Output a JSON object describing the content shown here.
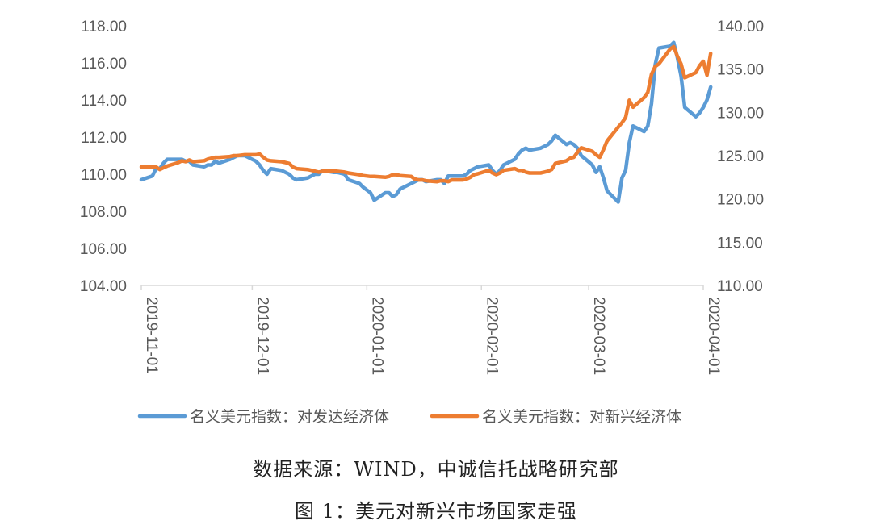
{
  "colors": {
    "developed": "#5B9BD5",
    "emerging": "#ED7D31",
    "axis": "#D9D9D9",
    "text": "#595959"
  },
  "captions": {
    "source": "数据来源：WIND，中诚信托战略研究部",
    "figure": "图 1：美元对新兴市场国家走强"
  },
  "chart_data": {
    "type": "line",
    "title": "",
    "grid": false,
    "legend_position": "bottom",
    "x_type": "date",
    "x_ticks": [
      "2019-11-01",
      "2019-12-01",
      "2020-01-01",
      "2020-02-01",
      "2020-03-01",
      "2020-04-01"
    ],
    "y_left": {
      "range": [
        104,
        118
      ],
      "ticks": [
        "104.00",
        "106.00",
        "108.00",
        "110.00",
        "112.00",
        "114.00",
        "116.00",
        "118.00"
      ]
    },
    "y_right": {
      "range": [
        110,
        140
      ],
      "ticks": [
        "110.00",
        "115.00",
        "120.00",
        "125.00",
        "130.00",
        "135.00",
        "140.00"
      ]
    },
    "series": [
      {
        "name": "名义美元指数：对发达经济体",
        "axis": "left",
        "color": "#5B9BD5",
        "points": [
          [
            "2019-11-01",
            109.7
          ],
          [
            "2019-11-04",
            109.9
          ],
          [
            "2019-11-05",
            110.3
          ],
          [
            "2019-11-06",
            110.3
          ],
          [
            "2019-11-07",
            110.6
          ],
          [
            "2019-11-08",
            110.8
          ],
          [
            "2019-11-11",
            110.8
          ],
          [
            "2019-11-12",
            110.8
          ],
          [
            "2019-11-13",
            110.7
          ],
          [
            "2019-11-14",
            110.7
          ],
          [
            "2019-11-15",
            110.5
          ],
          [
            "2019-11-18",
            110.4
          ],
          [
            "2019-11-19",
            110.5
          ],
          [
            "2019-11-20",
            110.5
          ],
          [
            "2019-11-21",
            110.7
          ],
          [
            "2019-11-22",
            110.6
          ],
          [
            "2019-11-25",
            110.8
          ],
          [
            "2019-11-26",
            110.9
          ],
          [
            "2019-11-27",
            111.0
          ],
          [
            "2019-11-29",
            111.0
          ],
          [
            "2019-12-02",
            110.7
          ],
          [
            "2019-12-03",
            110.5
          ],
          [
            "2019-12-04",
            110.2
          ],
          [
            "2019-12-05",
            110.0
          ],
          [
            "2019-12-06",
            110.3
          ],
          [
            "2019-12-09",
            110.2
          ],
          [
            "2019-12-10",
            110.1
          ],
          [
            "2019-12-11",
            110.0
          ],
          [
            "2019-12-12",
            109.8
          ],
          [
            "2019-12-13",
            109.7
          ],
          [
            "2019-12-16",
            109.8
          ],
          [
            "2019-12-17",
            109.9
          ],
          [
            "2019-12-18",
            110.0
          ],
          [
            "2019-12-19",
            110.0
          ],
          [
            "2019-12-20",
            110.2
          ],
          [
            "2019-12-23",
            110.1
          ],
          [
            "2019-12-24",
            110.1
          ],
          [
            "2019-12-26",
            110.0
          ],
          [
            "2019-12-27",
            109.7
          ],
          [
            "2019-12-30",
            109.5
          ],
          [
            "2019-12-31",
            109.3
          ],
          [
            "2020-01-02",
            109.0
          ],
          [
            "2020-01-03",
            108.6
          ],
          [
            "2020-01-06",
            109.0
          ],
          [
            "2020-01-07",
            109.0
          ],
          [
            "2020-01-08",
            108.8
          ],
          [
            "2020-01-09",
            108.9
          ],
          [
            "2020-01-10",
            109.2
          ],
          [
            "2020-01-13",
            109.5
          ],
          [
            "2020-01-14",
            109.6
          ],
          [
            "2020-01-15",
            109.7
          ],
          [
            "2020-01-16",
            109.7
          ],
          [
            "2020-01-17",
            109.6
          ],
          [
            "2020-01-20",
            109.7
          ],
          [
            "2020-01-21",
            109.7
          ],
          [
            "2020-01-22",
            109.5
          ],
          [
            "2020-01-23",
            109.9
          ],
          [
            "2020-01-24",
            109.9
          ],
          [
            "2020-01-27",
            109.9
          ],
          [
            "2020-01-28",
            110.0
          ],
          [
            "2020-01-29",
            110.2
          ],
          [
            "2020-01-30",
            110.3
          ],
          [
            "2020-01-31",
            110.4
          ],
          [
            "2020-02-03",
            110.5
          ],
          [
            "2020-02-04",
            110.2
          ],
          [
            "2020-02-05",
            110.0
          ],
          [
            "2020-02-06",
            110.2
          ],
          [
            "2020-02-07",
            110.5
          ],
          [
            "2020-02-10",
            110.8
          ],
          [
            "2020-02-11",
            111.1
          ],
          [
            "2020-02-12",
            111.3
          ],
          [
            "2020-02-13",
            111.4
          ],
          [
            "2020-02-14",
            111.3
          ],
          [
            "2020-02-17",
            111.4
          ],
          [
            "2020-02-18",
            111.5
          ],
          [
            "2020-02-19",
            111.6
          ],
          [
            "2020-02-20",
            111.8
          ],
          [
            "2020-02-21",
            112.1
          ],
          [
            "2020-02-24",
            111.6
          ],
          [
            "2020-02-25",
            111.7
          ],
          [
            "2020-02-26",
            111.6
          ],
          [
            "2020-02-27",
            111.4
          ],
          [
            "2020-02-28",
            111.0
          ],
          [
            "2020-03-02",
            110.5
          ],
          [
            "2020-03-03",
            110.1
          ],
          [
            "2020-03-04",
            110.4
          ],
          [
            "2020-03-05",
            109.8
          ],
          [
            "2020-03-06",
            109.1
          ],
          [
            "2020-03-09",
            108.5
          ],
          [
            "2020-03-10",
            109.8
          ],
          [
            "2020-03-11",
            110.2
          ],
          [
            "2020-03-12",
            111.7
          ],
          [
            "2020-03-13",
            112.6
          ],
          [
            "2020-03-16",
            112.3
          ],
          [
            "2020-03-17",
            112.6
          ],
          [
            "2020-03-18",
            113.8
          ],
          [
            "2020-03-19",
            115.9
          ],
          [
            "2020-03-20",
            116.8
          ],
          [
            "2020-03-23",
            116.9
          ],
          [
            "2020-03-24",
            117.1
          ],
          [
            "2020-03-25",
            116.3
          ],
          [
            "2020-03-26",
            115.3
          ],
          [
            "2020-03-27",
            113.6
          ],
          [
            "2020-03-30",
            113.1
          ],
          [
            "2020-03-31",
            113.3
          ],
          [
            "2020-04-01",
            113.6
          ],
          [
            "2020-04-02",
            114.0
          ],
          [
            "2020-04-03",
            114.7
          ]
        ]
      },
      {
        "name": "名义美元指数：对新兴经济体",
        "axis": "right",
        "color": "#ED7D31",
        "points": [
          [
            "2019-11-01",
            123.7
          ],
          [
            "2019-11-04",
            123.7
          ],
          [
            "2019-11-05",
            123.7
          ],
          [
            "2019-11-06",
            123.4
          ],
          [
            "2019-11-07",
            123.6
          ],
          [
            "2019-11-08",
            123.8
          ],
          [
            "2019-11-11",
            124.2
          ],
          [
            "2019-11-12",
            124.4
          ],
          [
            "2019-11-13",
            124.3
          ],
          [
            "2019-11-14",
            124.5
          ],
          [
            "2019-11-15",
            124.3
          ],
          [
            "2019-11-18",
            124.4
          ],
          [
            "2019-11-19",
            124.6
          ],
          [
            "2019-11-20",
            124.7
          ],
          [
            "2019-11-21",
            124.8
          ],
          [
            "2019-11-22",
            124.8
          ],
          [
            "2019-11-25",
            124.9
          ],
          [
            "2019-11-26",
            125.0
          ],
          [
            "2019-11-27",
            125.0
          ],
          [
            "2019-11-29",
            125.1
          ],
          [
            "2019-12-02",
            125.1
          ],
          [
            "2019-12-03",
            125.2
          ],
          [
            "2019-12-04",
            124.8
          ],
          [
            "2019-12-05",
            124.5
          ],
          [
            "2019-12-06",
            124.4
          ],
          [
            "2019-12-09",
            124.3
          ],
          [
            "2019-12-10",
            124.2
          ],
          [
            "2019-12-11",
            124.1
          ],
          [
            "2019-12-12",
            123.7
          ],
          [
            "2019-12-13",
            123.5
          ],
          [
            "2019-12-16",
            123.4
          ],
          [
            "2019-12-17",
            123.3
          ],
          [
            "2019-12-18",
            123.2
          ],
          [
            "2019-12-19",
            123.1
          ],
          [
            "2019-12-20",
            123.2
          ],
          [
            "2019-12-23",
            123.2
          ],
          [
            "2019-12-24",
            123.2
          ],
          [
            "2019-12-26",
            123.1
          ],
          [
            "2019-12-27",
            123.0
          ],
          [
            "2019-12-30",
            122.8
          ],
          [
            "2019-12-31",
            122.7
          ],
          [
            "2020-01-02",
            122.6
          ],
          [
            "2020-01-03",
            122.6
          ],
          [
            "2020-01-06",
            122.5
          ],
          [
            "2020-01-07",
            122.6
          ],
          [
            "2020-01-08",
            122.8
          ],
          [
            "2020-01-09",
            122.8
          ],
          [
            "2020-01-10",
            122.7
          ],
          [
            "2020-01-13",
            122.6
          ],
          [
            "2020-01-14",
            122.3
          ],
          [
            "2020-01-15",
            122.2
          ],
          [
            "2020-01-16",
            122.2
          ],
          [
            "2020-01-17",
            122.1
          ],
          [
            "2020-01-20",
            122.0
          ],
          [
            "2020-01-21",
            122.1
          ],
          [
            "2020-01-22",
            122.1
          ],
          [
            "2020-01-23",
            122.0
          ],
          [
            "2020-01-24",
            122.2
          ],
          [
            "2020-01-27",
            122.2
          ],
          [
            "2020-01-28",
            122.3
          ],
          [
            "2020-01-29",
            122.5
          ],
          [
            "2020-01-30",
            122.8
          ],
          [
            "2020-01-31",
            122.9
          ],
          [
            "2020-02-03",
            123.3
          ],
          [
            "2020-02-04",
            123.0
          ],
          [
            "2020-02-05",
            122.8
          ],
          [
            "2020-02-06",
            123.0
          ],
          [
            "2020-02-07",
            123.3
          ],
          [
            "2020-02-10",
            123.5
          ],
          [
            "2020-02-11",
            123.3
          ],
          [
            "2020-02-12",
            123.3
          ],
          [
            "2020-02-13",
            123.1
          ],
          [
            "2020-02-14",
            123.0
          ],
          [
            "2020-02-17",
            123.0
          ],
          [
            "2020-02-18",
            123.1
          ],
          [
            "2020-02-19",
            123.2
          ],
          [
            "2020-02-20",
            123.4
          ],
          [
            "2020-02-21",
            124.1
          ],
          [
            "2020-02-24",
            124.4
          ],
          [
            "2020-02-25",
            124.7
          ],
          [
            "2020-02-26",
            124.8
          ],
          [
            "2020-02-27",
            125.4
          ],
          [
            "2020-02-28",
            125.9
          ],
          [
            "2020-03-02",
            125.5
          ],
          [
            "2020-03-03",
            125.1
          ],
          [
            "2020-03-04",
            124.8
          ],
          [
            "2020-03-05",
            125.7
          ],
          [
            "2020-03-06",
            126.7
          ],
          [
            "2020-03-09",
            128.3
          ],
          [
            "2020-03-10",
            128.8
          ],
          [
            "2020-03-11",
            129.4
          ],
          [
            "2020-03-12",
            131.4
          ],
          [
            "2020-03-13",
            130.6
          ],
          [
            "2020-03-16",
            131.7
          ],
          [
            "2020-03-17",
            132.3
          ],
          [
            "2020-03-18",
            134.4
          ],
          [
            "2020-03-19",
            135.3
          ],
          [
            "2020-03-20",
            135.6
          ],
          [
            "2020-03-23",
            137.3
          ],
          [
            "2020-03-24",
            137.6
          ],
          [
            "2020-03-25",
            136.5
          ],
          [
            "2020-03-26",
            135.6
          ],
          [
            "2020-03-27",
            134.0
          ],
          [
            "2020-03-30",
            134.6
          ],
          [
            "2020-03-31",
            135.4
          ],
          [
            "2020-04-01",
            135.9
          ],
          [
            "2020-04-02",
            134.3
          ],
          [
            "2020-04-03",
            136.8
          ]
        ]
      }
    ]
  }
}
